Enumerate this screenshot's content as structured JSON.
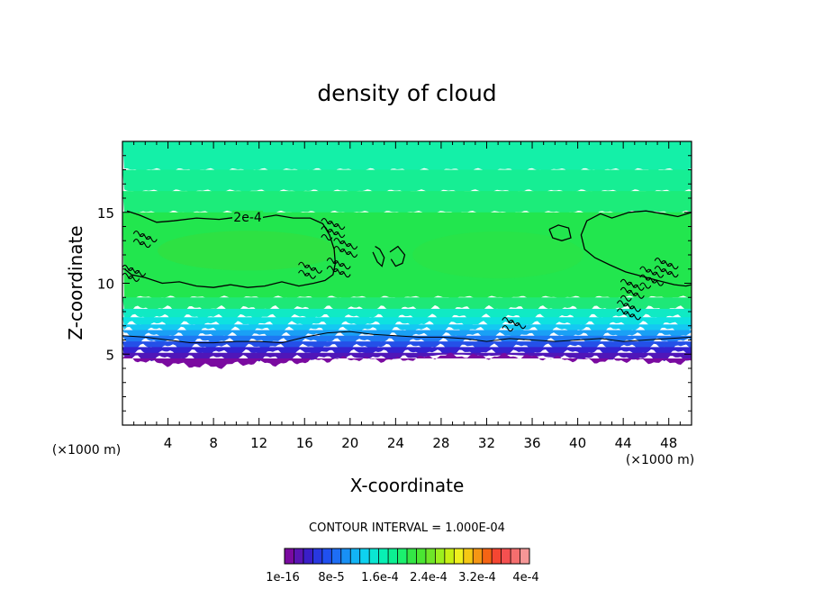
{
  "chart_data": {
    "type": "heatmap",
    "title": "density of cloud",
    "xlabel": "X-coordinate",
    "ylabel": "Z-coordinate",
    "x_unit": "(×1000 m)",
    "y_unit": "(×1000 m)",
    "xlim": [
      0,
      50
    ],
    "ylim": [
      0,
      20
    ],
    "x_ticks": [
      4,
      8,
      12,
      16,
      20,
      24,
      28,
      32,
      36,
      40,
      44,
      48
    ],
    "y_ticks": [
      5,
      10,
      15
    ],
    "contour_interval_text": "CONTOUR INTERVAL = 1.000E-04",
    "contour_label": "2e-4",
    "contour_level": 0.0002,
    "colorbar": {
      "colors": [
        "#7a0aa0",
        "#5a14b4",
        "#3a1ec8",
        "#2838e0",
        "#2050f0",
        "#1e6ef5",
        "#1890f5",
        "#12b4f5",
        "#0ed2f0",
        "#0ae6d2",
        "#08f0b4",
        "#0cf092",
        "#1cf06e",
        "#34e646",
        "#4ae632",
        "#6ee628",
        "#9cf01e",
        "#c8f014",
        "#f0f01e",
        "#f5c814",
        "#f59614",
        "#f56414",
        "#f54632",
        "#f55050",
        "#f56e6e",
        "#f59696"
      ],
      "tick_labels": [
        "1e-16",
        "8e-5",
        "1.6e-4",
        "2.4e-4",
        "3.2e-4",
        "4e-4"
      ]
    },
    "field_bands": [
      {
        "z_top": 20.0,
        "z_bottom": 18.0,
        "color": "#14f0a8"
      },
      {
        "z_top": 18.0,
        "z_bottom": 16.5,
        "color": "#16ee94"
      },
      {
        "z_top": 16.5,
        "z_bottom": 15.0,
        "color": "#1cec7a"
      },
      {
        "z_top": 15.0,
        "z_bottom": 9.0,
        "color": "#22e64e"
      },
      {
        "z_top": 9.0,
        "z_bottom": 8.2,
        "color": "#1ee878"
      },
      {
        "z_top": 8.2,
        "z_bottom": 7.6,
        "color": "#10eac4"
      },
      {
        "z_top": 7.6,
        "z_bottom": 7.1,
        "color": "#0ee2e0"
      },
      {
        "z_top": 7.1,
        "z_bottom": 6.7,
        "color": "#14c8f2"
      },
      {
        "z_top": 6.7,
        "z_bottom": 6.3,
        "color": "#1aa0f5"
      },
      {
        "z_top": 6.3,
        "z_bottom": 5.9,
        "color": "#1e78f2"
      },
      {
        "z_top": 5.9,
        "z_bottom": 5.5,
        "color": "#2450e8"
      },
      {
        "z_top": 5.5,
        "z_bottom": 5.1,
        "color": "#3422d0"
      },
      {
        "z_top": 5.1,
        "z_bottom": 4.7,
        "color": "#5016b8"
      },
      {
        "z_top": 4.7,
        "z_bottom": 4.2,
        "color": "#7a0aa0"
      }
    ],
    "cloud_base_profile": {
      "x": [
        0,
        2,
        4,
        6,
        8,
        10,
        12,
        14,
        16,
        18,
        20,
        22,
        24,
        26,
        28,
        30,
        32,
        34,
        36,
        38,
        40,
        42,
        44,
        46,
        48,
        50
      ],
      "z": [
        4.8,
        4.5,
        4.3,
        4.2,
        4.1,
        4.3,
        4.4,
        4.3,
        4.5,
        4.6,
        4.7,
        4.6,
        4.6,
        4.7,
        4.9,
        4.9,
        4.8,
        4.9,
        4.8,
        4.7,
        4.6,
        4.5,
        4.6,
        4.5,
        4.4,
        4.5
      ]
    },
    "threshold_contour_profile": {
      "x": [
        0,
        2,
        4,
        6,
        8,
        10,
        12,
        14,
        16,
        18,
        20,
        22,
        24,
        26,
        28,
        30,
        32,
        34,
        36,
        38,
        40,
        42,
        44,
        46,
        48,
        50
      ],
      "z": [
        6.3,
        6.2,
        6.0,
        5.8,
        5.8,
        5.9,
        5.9,
        5.8,
        6.2,
        6.5,
        6.6,
        6.4,
        6.3,
        6.2,
        6.2,
        6.1,
        5.9,
        6.1,
        6.0,
        5.9,
        6.0,
        6.1,
        5.9,
        6.0,
        6.1,
        6.2
      ]
    },
    "contours_2e-4": [
      {
        "x": [
          0.4,
          1.5,
          3.0,
          4.5,
          6.5,
          8.5,
          10.5,
          12.0,
          13.5,
          15.0,
          16.5,
          17.6,
          18.2,
          18.6,
          18.7,
          18.5,
          17.8,
          16.8,
          15.5,
          14.0,
          12.5,
          11.0,
          9.5,
          8.0,
          6.5,
          5.0,
          3.5,
          2.0,
          0.8,
          0.2
        ],
        "z": [
          15.1,
          14.8,
          14.3,
          14.4,
          14.6,
          14.5,
          14.7,
          14.6,
          14.8,
          14.6,
          14.6,
          14.2,
          13.4,
          12.4,
          11.4,
          10.6,
          10.2,
          10.0,
          9.8,
          10.1,
          9.8,
          9.7,
          9.9,
          9.7,
          9.8,
          10.1,
          10.0,
          10.4,
          10.6,
          11.0
        ]
      },
      {
        "x": [
          22.2,
          22.6,
          23.0,
          22.8,
          22.4,
          22.0
        ],
        "z": [
          12.6,
          12.4,
          11.8,
          11.2,
          11.5,
          12.2
        ]
      },
      {
        "x": [
          23.5,
          24.2,
          24.8,
          24.6,
          24.0,
          23.6
        ],
        "z": [
          12.2,
          12.6,
          12.0,
          11.4,
          11.2,
          11.7
        ]
      },
      {
        "x": [
          37.5,
          38.3,
          39.2,
          39.4,
          38.6,
          37.8,
          37.5
        ],
        "z": [
          13.8,
          14.1,
          13.9,
          13.2,
          13.0,
          13.2,
          13.8
        ]
      },
      {
        "x": [
          50.0,
          48.8,
          47.5,
          46.0,
          44.5,
          43.0,
          42.0,
          40.8,
          40.3,
          40.6,
          41.5,
          42.8,
          44.2,
          45.6,
          47.0,
          48.5,
          49.5,
          50.0
        ],
        "z": [
          15.0,
          14.7,
          14.9,
          15.1,
          15.0,
          14.6,
          14.9,
          14.4,
          13.4,
          12.4,
          11.8,
          11.3,
          10.8,
          10.5,
          10.2,
          9.9,
          9.8,
          9.9
        ]
      }
    ]
  }
}
